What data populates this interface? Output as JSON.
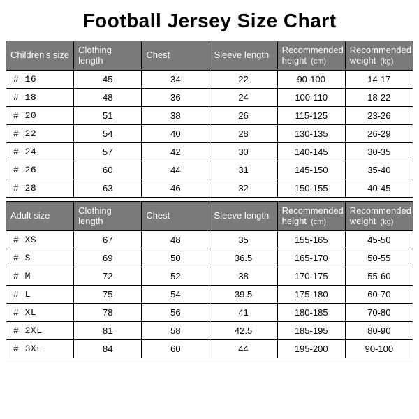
{
  "title": "Football Jersey Size Chart",
  "colors": {
    "header_bg": "#7a7a7a",
    "header_fg": "#ffffff",
    "border": "#000000",
    "page_bg": "#ffffff",
    "text": "#000000"
  },
  "typography": {
    "title_fontsize": 28,
    "title_weight": 700,
    "cell_fontsize": 13,
    "header_fontsize": 13,
    "body_font": "Arial",
    "size_cell_font": "Courier New"
  },
  "columns": [
    {
      "key": "size",
      "child_label": "Children's size",
      "adult_label": "Adult size",
      "width_pct": 17,
      "align": "left"
    },
    {
      "key": "clothing_length",
      "label": "Clothing length",
      "width_pct": 13,
      "align": "center"
    },
    {
      "key": "chest",
      "label": "Chest",
      "width_pct": 12,
      "align": "center"
    },
    {
      "key": "sleeve_length",
      "label": "Sleeve length",
      "width_pct": 13,
      "align": "center"
    },
    {
      "key": "rec_height",
      "label_main": "Recommended height",
      "label_unit": "(cm)",
      "width_pct": 23,
      "align": "center"
    },
    {
      "key": "rec_weight",
      "label_main": "Recommended weight",
      "label_unit": "(kg)",
      "width_pct": 22,
      "align": "center"
    }
  ],
  "children_rows": [
    {
      "size": "# 16",
      "clothing_length": "45",
      "chest": "34",
      "sleeve_length": "22",
      "rec_height": "90-100",
      "rec_weight": "14-17"
    },
    {
      "size": "# 18",
      "clothing_length": "48",
      "chest": "36",
      "sleeve_length": "24",
      "rec_height": "100-110",
      "rec_weight": "18-22"
    },
    {
      "size": "# 20",
      "clothing_length": "51",
      "chest": "38",
      "sleeve_length": "26",
      "rec_height": "115-125",
      "rec_weight": "23-26"
    },
    {
      "size": "# 22",
      "clothing_length": "54",
      "chest": "40",
      "sleeve_length": "28",
      "rec_height": "130-135",
      "rec_weight": "26-29"
    },
    {
      "size": "# 24",
      "clothing_length": "57",
      "chest": "42",
      "sleeve_length": "30",
      "rec_height": "140-145",
      "rec_weight": "30-35"
    },
    {
      "size": "# 26",
      "clothing_length": "60",
      "chest": "44",
      "sleeve_length": "31",
      "rec_height": "145-150",
      "rec_weight": "35-40"
    },
    {
      "size": "# 28",
      "clothing_length": "63",
      "chest": "46",
      "sleeve_length": "32",
      "rec_height": "150-155",
      "rec_weight": "40-45"
    }
  ],
  "adult_rows": [
    {
      "size": "# XS",
      "clothing_length": "67",
      "chest": "48",
      "sleeve_length": "35",
      "rec_height": "155-165",
      "rec_weight": "45-50"
    },
    {
      "size": "# S",
      "clothing_length": "69",
      "chest": "50",
      "sleeve_length": "36.5",
      "rec_height": "165-170",
      "rec_weight": "50-55"
    },
    {
      "size": "# M",
      "clothing_length": "72",
      "chest": "52",
      "sleeve_length": "38",
      "rec_height": "170-175",
      "rec_weight": "55-60"
    },
    {
      "size": "# L",
      "clothing_length": "75",
      "chest": "54",
      "sleeve_length": "39.5",
      "rec_height": "175-180",
      "rec_weight": "60-70"
    },
    {
      "size": "# XL",
      "clothing_length": "78",
      "chest": "56",
      "sleeve_length": "41",
      "rec_height": "180-185",
      "rec_weight": "70-80"
    },
    {
      "size": "# 2XL",
      "clothing_length": "81",
      "chest": "58",
      "sleeve_length": "42.5",
      "rec_height": "185-195",
      "rec_weight": "80-90"
    },
    {
      "size": "# 3XL",
      "clothing_length": "84",
      "chest": "60",
      "sleeve_length": "44",
      "rec_height": "195-200",
      "rec_weight": "90-100"
    }
  ]
}
